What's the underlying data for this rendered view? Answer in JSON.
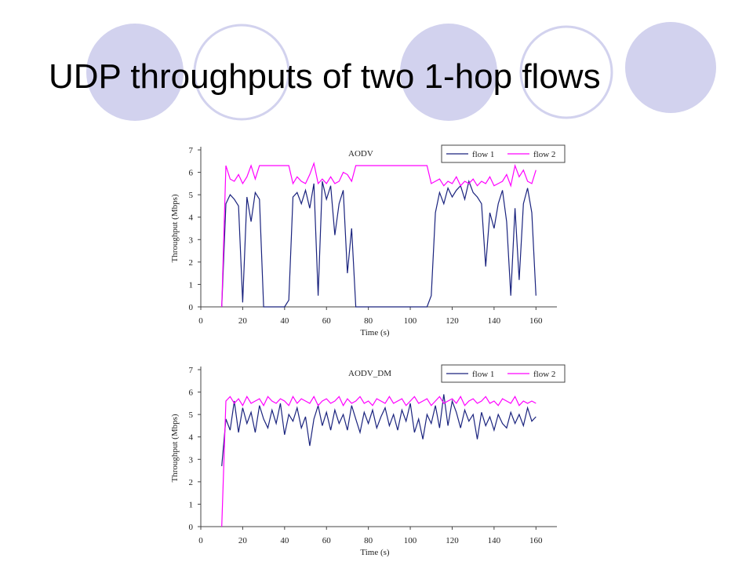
{
  "title": "UDP throughputs of two 1-hop flows",
  "chart_data": [
    {
      "type": "line",
      "title": "AODV",
      "xlabel": "Time (s)",
      "ylabel": "Throughput (Mbps)",
      "legend": "upper right",
      "x": [
        10,
        12,
        14,
        16,
        18,
        20,
        22,
        24,
        26,
        28,
        30,
        32,
        34,
        36,
        38,
        40,
        42,
        44,
        46,
        48,
        50,
        52,
        54,
        56,
        58,
        60,
        62,
        64,
        66,
        68,
        70,
        72,
        74,
        76,
        78,
        80,
        82,
        84,
        86,
        88,
        90,
        92,
        94,
        96,
        98,
        100,
        102,
        104,
        106,
        108,
        110,
        112,
        114,
        116,
        118,
        120,
        122,
        124,
        126,
        128,
        130,
        132,
        134,
        136,
        138,
        140,
        142,
        144,
        146,
        148,
        150,
        152,
        154,
        156,
        158,
        160
      ],
      "series": [
        {
          "name": "flow 1",
          "color": "#1a237e",
          "values": [
            0,
            4.6,
            5,
            4.8,
            4.5,
            0.2,
            4.9,
            3.8,
            5.1,
            4.8,
            0,
            0,
            0,
            0,
            0,
            0,
            0.3,
            4.9,
            5.1,
            4.6,
            5.2,
            4.4,
            5.5,
            0.5,
            5.6,
            4.8,
            5.4,
            3.2,
            4.6,
            5.2,
            1.5,
            3.5,
            0,
            0,
            0,
            0,
            0,
            0,
            0,
            0,
            0,
            0,
            0,
            0,
            0,
            0,
            0,
            0,
            0,
            0,
            0.5,
            4.2,
            5.1,
            4.6,
            5.3,
            4.9,
            5.2,
            5.4,
            4.8,
            5.6,
            5.1,
            4.9,
            4.6,
            1.8,
            4.2,
            3.5,
            4.6,
            5.2,
            3.8,
            0.5,
            4.4,
            1.2,
            4.6,
            5.3,
            4.2,
            0.5
          ]
        },
        {
          "name": "flow 2",
          "color": "#ff00ff",
          "values": [
            0,
            6.3,
            5.7,
            5.6,
            5.9,
            5.5,
            5.8,
            6.3,
            5.7,
            6.3,
            6.3,
            6.3,
            6.3,
            6.3,
            6.3,
            6.3,
            6.3,
            5.5,
            5.8,
            5.6,
            5.5,
            5.9,
            6.4,
            5.5,
            5.7,
            5.5,
            5.8,
            5.5,
            5.6,
            6.0,
            5.9,
            5.6,
            6.3,
            6.3,
            6.3,
            6.3,
            6.3,
            6.3,
            6.3,
            6.3,
            6.3,
            6.3,
            6.3,
            6.3,
            6.3,
            6.3,
            6.3,
            6.3,
            6.3,
            6.3,
            5.5,
            5.6,
            5.7,
            5.4,
            5.6,
            5.5,
            5.8,
            5.4,
            5.6,
            5.5,
            5.7,
            5.4,
            5.6,
            5.5,
            5.8,
            5.4,
            5.5,
            5.6,
            5.9,
            5.4,
            6.3,
            5.8,
            6.1,
            5.6,
            5.5,
            6.1
          ]
        }
      ],
      "xlim": [
        0,
        170
      ],
      "ylim": [
        0,
        7
      ],
      "xticks": [
        0,
        20,
        40,
        60,
        80,
        100,
        120,
        140,
        160
      ],
      "yticks": [
        0,
        1,
        2,
        3,
        4,
        5,
        6,
        7
      ]
    },
    {
      "type": "line",
      "title": "AODV_DM",
      "xlabel": "Time (s)",
      "ylabel": "Throughput (Mbps)",
      "legend": "upper right",
      "x": [
        10,
        12,
        14,
        16,
        18,
        20,
        22,
        24,
        26,
        28,
        30,
        32,
        34,
        36,
        38,
        40,
        42,
        44,
        46,
        48,
        50,
        52,
        54,
        56,
        58,
        60,
        62,
        64,
        66,
        68,
        70,
        72,
        74,
        76,
        78,
        80,
        82,
        84,
        86,
        88,
        90,
        92,
        94,
        96,
        98,
        100,
        102,
        104,
        106,
        108,
        110,
        112,
        114,
        116,
        118,
        120,
        122,
        124,
        126,
        128,
        130,
        132,
        134,
        136,
        138,
        140,
        142,
        144,
        146,
        148,
        150,
        152,
        154,
        156,
        158,
        160
      ],
      "series": [
        {
          "name": "flow 1",
          "color": "#1a237e",
          "values": [
            2.7,
            4.8,
            4.3,
            5.6,
            4.2,
            5.3,
            4.6,
            5.1,
            4.2,
            5.4,
            4.8,
            4.4,
            5.2,
            4.6,
            5.5,
            4.1,
            5.0,
            4.7,
            5.3,
            4.4,
            4.9,
            3.6,
            4.8,
            5.4,
            4.5,
            5.1,
            4.3,
            5.2,
            4.6,
            5.0,
            4.3,
            5.4,
            4.8,
            4.2,
            5.1,
            4.6,
            5.2,
            4.4,
            4.9,
            5.3,
            4.5,
            5.0,
            4.3,
            5.2,
            4.7,
            5.5,
            4.2,
            4.8,
            3.9,
            5.0,
            4.6,
            5.4,
            4.4,
            5.9,
            4.5,
            5.6,
            5.1,
            4.4,
            5.2,
            4.7,
            5.0,
            3.9,
            5.1,
            4.5,
            4.9,
            4.3,
            5.0,
            4.6,
            4.4,
            5.1,
            4.6,
            5.0,
            4.5,
            5.3,
            4.7,
            4.9
          ]
        },
        {
          "name": "flow 2",
          "color": "#ff00ff",
          "values": [
            0,
            5.6,
            5.8,
            5.5,
            5.7,
            5.4,
            5.8,
            5.5,
            5.6,
            5.7,
            5.4,
            5.8,
            5.6,
            5.5,
            5.7,
            5.6,
            5.4,
            5.8,
            5.5,
            5.7,
            5.6,
            5.5,
            5.8,
            5.4,
            5.6,
            5.7,
            5.5,
            5.6,
            5.8,
            5.4,
            5.7,
            5.5,
            5.6,
            5.8,
            5.5,
            5.6,
            5.4,
            5.7,
            5.6,
            5.5,
            5.8,
            5.5,
            5.6,
            5.7,
            5.4,
            5.6,
            5.8,
            5.5,
            5.6,
            5.7,
            5.4,
            5.6,
            5.8,
            5.5,
            5.6,
            5.7,
            5.5,
            5.8,
            5.4,
            5.6,
            5.7,
            5.5,
            5.6,
            5.8,
            5.5,
            5.6,
            5.4,
            5.7,
            5.6,
            5.5,
            5.8,
            5.4,
            5.6,
            5.5,
            5.6,
            5.5
          ]
        }
      ],
      "xlim": [
        0,
        170
      ],
      "ylim": [
        0,
        7
      ],
      "xticks": [
        0,
        20,
        40,
        60,
        80,
        100,
        120,
        140,
        160
      ],
      "yticks": [
        0,
        1,
        2,
        3,
        4,
        5,
        6,
        7
      ]
    }
  ]
}
